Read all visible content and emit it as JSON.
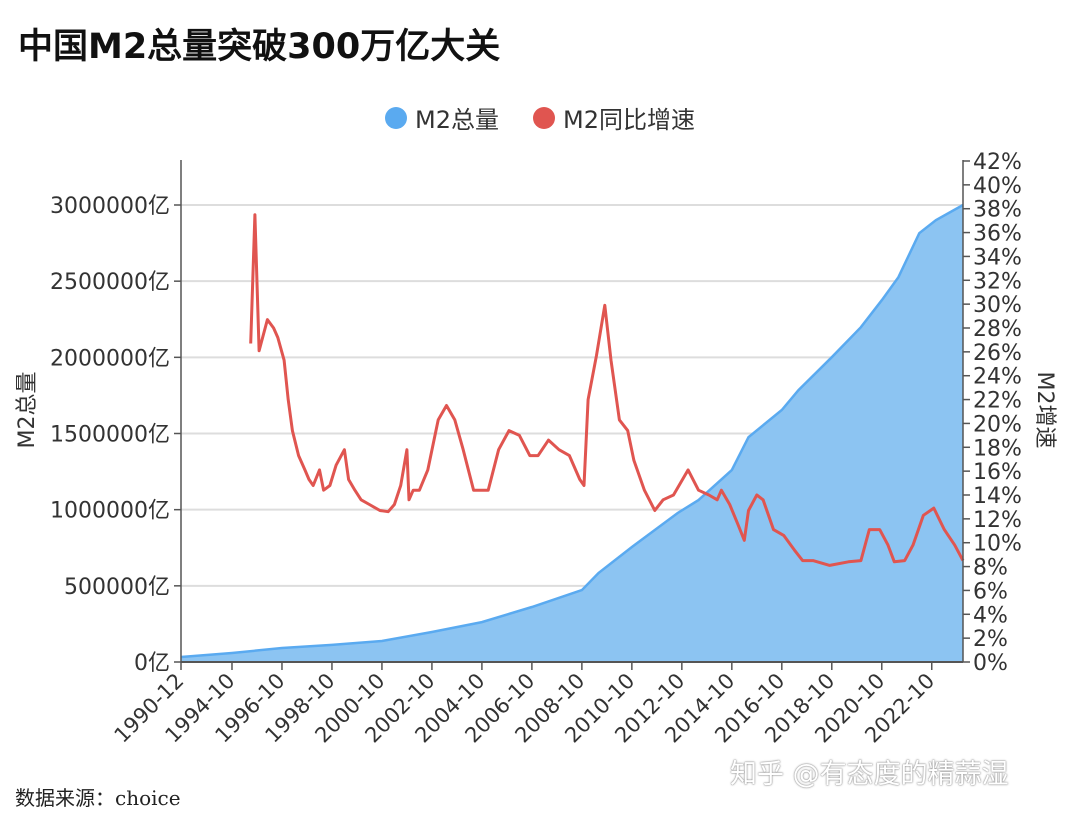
{
  "title": "中国M2总量突破300万亿大关",
  "source": "数据来源：choice",
  "watermark": "知乎 @有态度的精蒜湿",
  "colors": {
    "m2_total": "#5aaaf0",
    "m2_total_fill": "#8cc4f2",
    "m2_growth": "#e05550",
    "grid": "#dddddd",
    "axis": "#555555"
  },
  "chart_data": {
    "type": "area+line",
    "title": "中国M2总量突破300万亿大关",
    "legend_position": "top",
    "grid": true,
    "y_left": {
      "label": "M2总量",
      "unit": "亿",
      "range": [
        0,
        3000000
      ],
      "ticks": [
        "0亿",
        "500000亿",
        "1000000亿",
        "1500000亿",
        "2000000亿",
        "2500000亿",
        "3000000亿"
      ]
    },
    "y_right": {
      "label": "M2增速",
      "range": [
        0,
        42
      ],
      "ticks": [
        "0%",
        "2%",
        "4%",
        "6%",
        "8%",
        "10%",
        "12%",
        "14%",
        "16%",
        "18%",
        "20%",
        "22%",
        "24%",
        "26%",
        "28%",
        "30%",
        "32%",
        "34%",
        "36%",
        "38%",
        "40%",
        "42%"
      ]
    },
    "x_ticks": [
      "1990-12",
      "1994-10",
      "1996-10",
      "1998-10",
      "2000-10",
      "2002-10",
      "2004-10",
      "2006-10",
      "2008-10",
      "2010-10",
      "2012-10",
      "2014-10",
      "2016-10",
      "2018-10",
      "2020-10",
      "2022-10"
    ],
    "series": [
      {
        "name": "M2总量",
        "type": "area",
        "axis": "left",
        "points": [
          [
            "1990-12",
            33000
          ],
          [
            "1994-10",
            59000
          ],
          [
            "1996-10",
            92000
          ],
          [
            "1998-10",
            112000
          ],
          [
            "2000-10",
            138000
          ],
          [
            "2002-10",
            197000
          ],
          [
            "2004-10",
            262000
          ],
          [
            "2006-10",
            361000
          ],
          [
            "2008-10",
            472000
          ],
          [
            "2009-06",
            584000
          ],
          [
            "2010-10",
            755000
          ],
          [
            "2012-08",
            978000
          ],
          [
            "2013-06",
            1063000
          ],
          [
            "2014-10",
            1260000
          ],
          [
            "2015-06",
            1476000
          ],
          [
            "2016-10",
            1654000
          ],
          [
            "2017-06",
            1785000
          ],
          [
            "2018-10",
            2001000
          ],
          [
            "2019-12",
            2198000
          ],
          [
            "2020-10",
            2375000
          ],
          [
            "2021-06",
            2526000
          ],
          [
            "2022-04",
            2815000
          ],
          [
            "2022-12",
            2900000
          ],
          [
            "2024-01",
            3000000
          ]
        ]
      },
      {
        "name": "M2同比增速",
        "type": "line",
        "axis": "right",
        "points": [
          [
            "1995-07",
            26.7
          ],
          [
            "1995-09",
            37.5
          ],
          [
            "1995-11",
            26.1
          ],
          [
            "1996-03",
            28.7
          ],
          [
            "1996-06",
            28.0
          ],
          [
            "1996-08",
            27.2
          ],
          [
            "1996-11",
            25.3
          ],
          [
            "1997-01",
            22.0
          ],
          [
            "1997-03",
            19.4
          ],
          [
            "1997-06",
            17.3
          ],
          [
            "1997-09",
            16.1
          ],
          [
            "1997-11",
            15.3
          ],
          [
            "1998-01",
            14.8
          ],
          [
            "1998-04",
            16.1
          ],
          [
            "1998-06",
            14.4
          ],
          [
            "1998-09",
            14.8
          ],
          [
            "1998-12",
            16.5
          ],
          [
            "1999-04",
            17.8
          ],
          [
            "1999-06",
            15.3
          ],
          [
            "1999-09",
            14.4
          ],
          [
            "1999-12",
            13.6
          ],
          [
            "2000-04",
            13.2
          ],
          [
            "2000-09",
            12.7
          ],
          [
            "2001-01",
            12.6
          ],
          [
            "2001-04",
            13.2
          ],
          [
            "2001-07",
            14.8
          ],
          [
            "2001-10",
            17.8
          ],
          [
            "2001-11",
            13.6
          ],
          [
            "2002-01",
            14.4
          ],
          [
            "2002-04",
            14.4
          ],
          [
            "2002-08",
            16.1
          ],
          [
            "2002-11",
            18.6
          ],
          [
            "2003-01",
            20.3
          ],
          [
            "2003-05",
            21.5
          ],
          [
            "2003-09",
            20.3
          ],
          [
            "2004-01",
            17.8
          ],
          [
            "2004-06",
            14.4
          ],
          [
            "2004-09",
            14.4
          ],
          [
            "2005-01",
            14.4
          ],
          [
            "2005-06",
            17.8
          ],
          [
            "2005-11",
            19.4
          ],
          [
            "2006-04",
            19.0
          ],
          [
            "2006-09",
            17.3
          ],
          [
            "2007-01",
            17.3
          ],
          [
            "2007-06",
            18.6
          ],
          [
            "2007-11",
            17.8
          ],
          [
            "2008-04",
            17.3
          ],
          [
            "2008-09",
            15.3
          ],
          [
            "2008-11",
            14.8
          ],
          [
            "2009-01",
            22.0
          ],
          [
            "2009-05",
            25.7
          ],
          [
            "2009-09",
            29.9
          ],
          [
            "2009-12",
            25.3
          ],
          [
            "2010-04",
            20.3
          ],
          [
            "2010-08",
            19.4
          ],
          [
            "2010-11",
            16.9
          ],
          [
            "2011-04",
            14.4
          ],
          [
            "2011-09",
            12.7
          ],
          [
            "2012-01",
            13.6
          ],
          [
            "2012-06",
            14.0
          ],
          [
            "2013-01",
            16.1
          ],
          [
            "2013-06",
            14.4
          ],
          [
            "2013-11",
            14.0
          ],
          [
            "2014-03",
            13.6
          ],
          [
            "2014-05",
            14.4
          ],
          [
            "2014-09",
            13.2
          ],
          [
            "2015-01",
            11.5
          ],
          [
            "2015-04",
            10.2
          ],
          [
            "2015-06",
            12.7
          ],
          [
            "2015-10",
            14.0
          ],
          [
            "2016-01",
            13.6
          ],
          [
            "2016-06",
            11.1
          ],
          [
            "2016-11",
            10.6
          ],
          [
            "2017-04",
            9.4
          ],
          [
            "2017-08",
            8.5
          ],
          [
            "2018-01",
            8.5
          ],
          [
            "2018-09",
            8.1
          ],
          [
            "2019-06",
            8.4
          ],
          [
            "2019-12",
            8.5
          ],
          [
            "2020-04",
            11.1
          ],
          [
            "2020-09",
            11.1
          ],
          [
            "2021-01",
            9.8
          ],
          [
            "2021-04",
            8.4
          ],
          [
            "2021-09",
            8.5
          ],
          [
            "2022-01",
            9.8
          ],
          [
            "2022-06",
            12.3
          ],
          [
            "2022-11",
            12.9
          ],
          [
            "2023-04",
            11.1
          ],
          [
            "2023-09",
            9.8
          ],
          [
            "2024-01",
            8.5
          ]
        ]
      }
    ]
  }
}
